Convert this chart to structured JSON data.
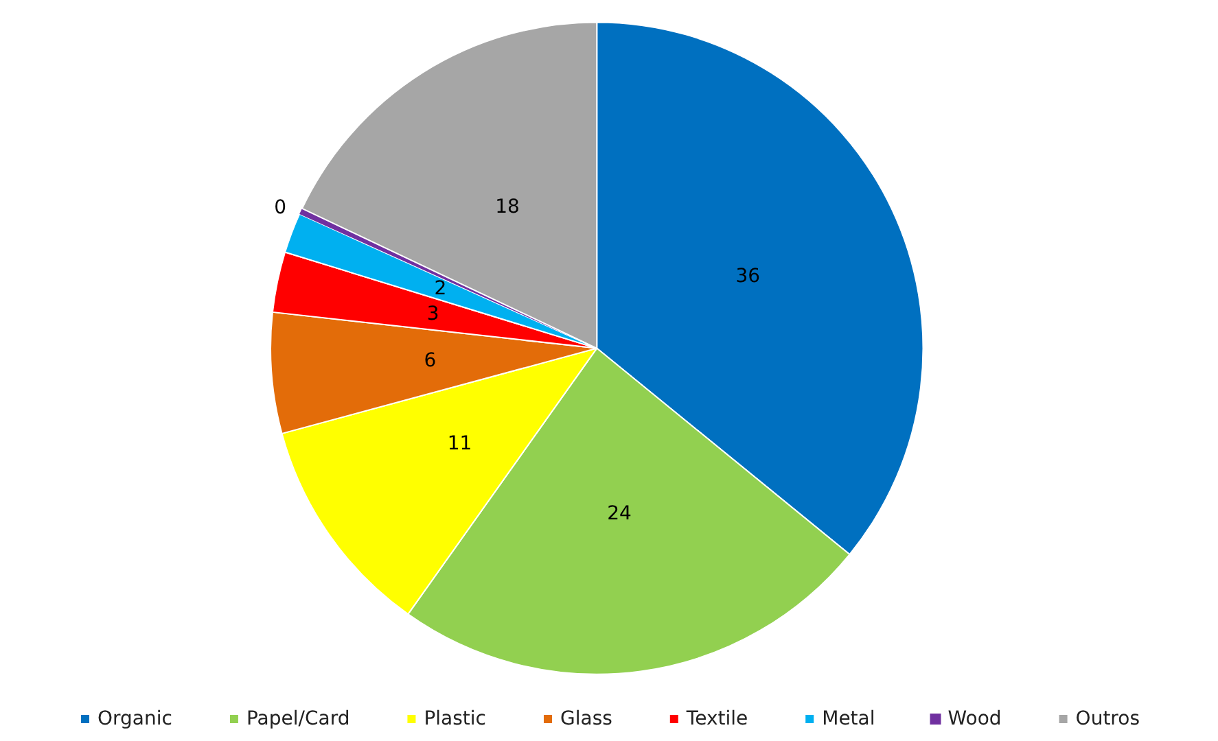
{
  "chart_data": {
    "type": "pie",
    "categories": [
      "Organic",
      "Papel/Card",
      "Plastic",
      "Glass",
      "Textile",
      "Metal",
      "Wood",
      "Outros"
    ],
    "values": [
      36,
      24,
      11,
      6,
      3,
      2,
      0.3,
      18
    ],
    "value_labels": [
      "36",
      "24",
      "11",
      "6",
      "3",
      "2",
      "0",
      "18"
    ],
    "colors": [
      "#0070c0",
      "#92d050",
      "#ffff00",
      "#e36c09",
      "#ff0000",
      "#00b0f0",
      "#7030a0",
      "#a6a6a6"
    ],
    "legend": "bottom"
  }
}
